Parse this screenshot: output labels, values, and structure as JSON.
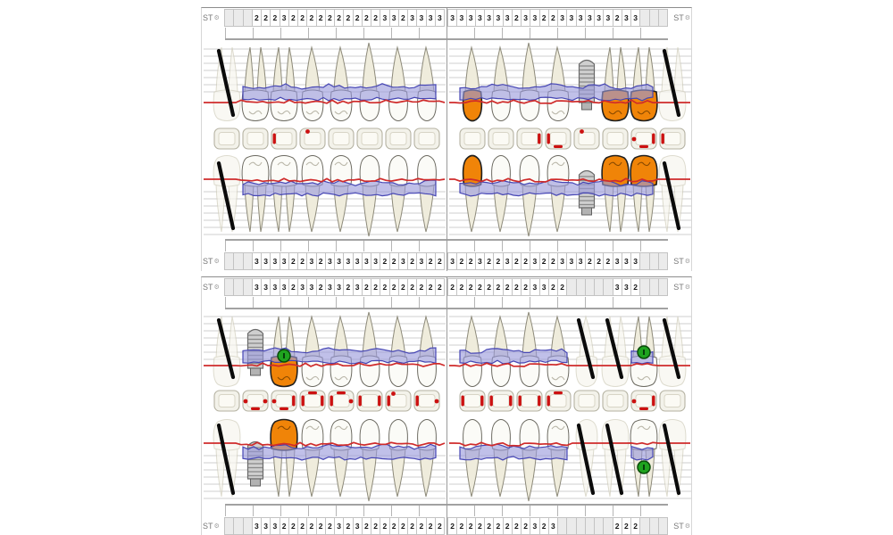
{
  "labels": {
    "st": "ST",
    "gear_icon": "⚙"
  },
  "colors": {
    "crown_orange": "#F08408",
    "band_fill": "#9A99DC",
    "band_stroke": "#4646B4",
    "gum_line_red": "#CF2B2B",
    "green_marker": "#1FA31F",
    "mark_red": "#CC1111",
    "missing_line": "#0B0B0B",
    "implant_gray": "#CFCFCF",
    "grid_line": "#CFCFCF"
  },
  "charts": [
    {
      "st_top": {
        "left": [
          "",
          "",
          "",
          "2",
          "2",
          "2",
          "3",
          "2",
          "2",
          "2",
          "2",
          "2",
          "2",
          "2",
          "2",
          "2",
          "2",
          "3",
          "3",
          "2",
          "3",
          "3",
          "3",
          "3"
        ],
        "right": [
          "3",
          "3",
          "3",
          "3",
          "3",
          "3",
          "3",
          "2",
          "3",
          "3",
          "2",
          "2",
          "3",
          "3",
          "3",
          "3",
          "3",
          "3",
          "2",
          "3",
          "3",
          "",
          "",
          ""
        ]
      },
      "st_bottom": {
        "left": [
          "",
          "",
          "",
          "3",
          "3",
          "3",
          "3",
          "2",
          "2",
          "3",
          "2",
          "3",
          "3",
          "3",
          "3",
          "3",
          "3",
          "2",
          "2",
          "3",
          "2",
          "3",
          "2",
          "2"
        ],
        "right": [
          "3",
          "2",
          "2",
          "3",
          "2",
          "2",
          "3",
          "2",
          "2",
          "3",
          "2",
          "2",
          "3",
          "3",
          "3",
          "2",
          "2",
          "2",
          "3",
          "3",
          "3",
          "",
          "",
          ""
        ]
      },
      "quadrants": {
        "upper_left": [
          "missing",
          "normal",
          "normal",
          "normal",
          "normal",
          "normal",
          "normal",
          "normal"
        ],
        "upper_right": [
          "crown",
          "normal",
          "normal",
          "normal",
          "implant",
          "crown",
          "crown",
          "missing"
        ],
        "lower_left": [
          "missing",
          "normal",
          "normal",
          "normal",
          "normal",
          "normal",
          "normal",
          "normal"
        ],
        "lower_right": [
          "crown",
          "normal",
          "normal",
          "normal",
          "implant",
          "crown",
          "crown",
          "missing"
        ]
      },
      "occlusal": {
        "left": [
          [],
          [],
          [
            "L"
          ],
          [
            "t"
          ],
          [],
          [],
          [],
          []
        ],
        "right": [
          [],
          [],
          [
            "R"
          ],
          [
            "L",
            "B"
          ],
          [
            "t"
          ],
          [],
          [
            "l",
            "B",
            "R"
          ],
          [
            "L"
          ]
        ]
      }
    },
    {
      "st_top": {
        "left": [
          "",
          "",
          "",
          "3",
          "3",
          "3",
          "3",
          "2",
          "3",
          "3",
          "2",
          "3",
          "3",
          "2",
          "3",
          "2",
          "2",
          "2",
          "2",
          "2",
          "2",
          "2",
          "2",
          "2"
        ],
        "right": [
          "2",
          "2",
          "2",
          "2",
          "2",
          "2",
          "2",
          "2",
          "2",
          "3",
          "3",
          "2",
          "2",
          "",
          "",
          "",
          "",
          "",
          "3",
          "3",
          "2",
          "",
          "",
          ""
        ]
      },
      "st_bottom": {
        "left": [
          "",
          "",
          "",
          "3",
          "3",
          "3",
          "2",
          "2",
          "2",
          "2",
          "2",
          "2",
          "3",
          "2",
          "3",
          "2",
          "2",
          "2",
          "2",
          "2",
          "2",
          "2",
          "2",
          "2"
        ],
        "right": [
          "2",
          "2",
          "2",
          "2",
          "2",
          "2",
          "2",
          "2",
          "2",
          "3",
          "2",
          "3",
          "",
          "",
          "",
          "",
          "",
          "",
          "2",
          "2",
          "2",
          "",
          "",
          ""
        ]
      },
      "quadrants": {
        "upper_left": [
          "missing",
          "implant",
          "crown+green",
          "normal",
          "normal",
          "normal",
          "normal",
          "normal"
        ],
        "upper_right": [
          "normal",
          "normal",
          "normal",
          "normal",
          "missing",
          "missing",
          "normal+green",
          "missing"
        ],
        "lower_left": [
          "missing",
          "implant",
          "crown",
          "normal",
          "normal",
          "normal",
          "normal",
          "normal"
        ],
        "lower_right": [
          "normal",
          "normal",
          "normal",
          "normal",
          "missing",
          "missing",
          "normal+green",
          "missing"
        ]
      },
      "occlusal": {
        "left": [
          [],
          [
            "l",
            "B",
            "r"
          ],
          [
            "l",
            "B",
            "R"
          ],
          [
            "L",
            "T",
            "R"
          ],
          [
            "L",
            "T",
            "r"
          ],
          [
            "L",
            "R"
          ],
          [
            "L",
            "t"
          ],
          [
            "L",
            "r"
          ]
        ],
        "right": [
          [
            "L",
            "R"
          ],
          [
            "L",
            "R"
          ],
          [
            "L",
            "R"
          ],
          [
            "L",
            "T"
          ],
          [],
          [],
          [
            "l",
            "B",
            "R"
          ],
          []
        ]
      }
    }
  ]
}
